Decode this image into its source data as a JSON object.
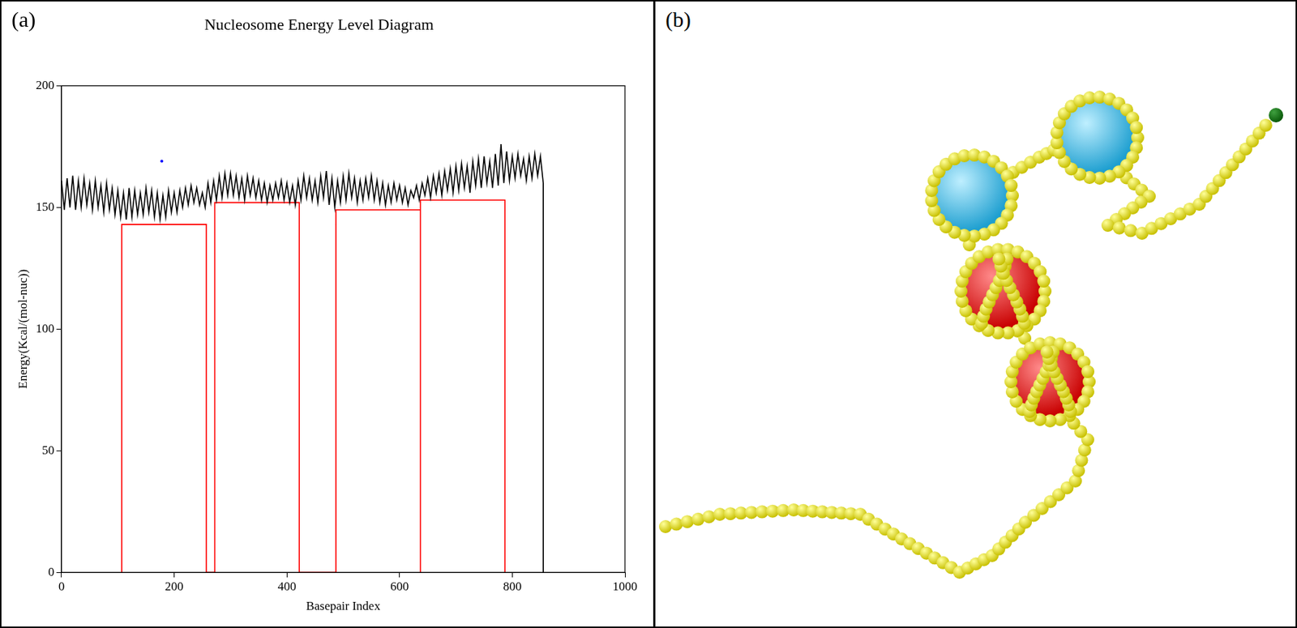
{
  "panel_labels": [
    "(a)",
    "(b)"
  ],
  "chart_data": {
    "type": "line",
    "title": "Nucleosome Energy Level Diagram",
    "x_label": "Basepair Index",
    "y_label": "Energy(Kcal/(mol-nuc))",
    "xlim": [
      0,
      1000
    ],
    "xticks": [
      0,
      200,
      400,
      600,
      800,
      1000
    ],
    "ylim": [
      0,
      200
    ],
    "yticks": [
      0,
      50,
      100,
      150,
      200
    ],
    "grid": false,
    "series": [
      {
        "type": "line",
        "color": "#000000",
        "x": [
          0,
          5,
          10,
          15,
          20,
          25,
          30,
          35,
          40,
          45,
          50,
          55,
          60,
          65,
          70,
          75,
          80,
          85,
          90,
          95,
          100,
          105,
          110,
          115,
          120,
          125,
          130,
          135,
          140,
          145,
          150,
          155,
          160,
          165,
          170,
          175,
          180,
          185,
          190,
          195,
          200,
          205,
          210,
          215,
          220,
          225,
          230,
          235,
          240,
          245,
          250,
          255,
          260,
          265,
          270,
          275,
          280,
          285,
          290,
          295,
          300,
          305,
          310,
          315,
          320,
          325,
          330,
          335,
          340,
          345,
          350,
          355,
          360,
          365,
          370,
          375,
          380,
          385,
          390,
          395,
          400,
          405,
          410,
          415,
          420,
          425,
          430,
          435,
          440,
          445,
          450,
          455,
          460,
          465,
          470,
          475,
          480,
          485,
          490,
          495,
          500,
          505,
          510,
          515,
          520,
          525,
          530,
          535,
          540,
          545,
          550,
          555,
          560,
          565,
          570,
          575,
          580,
          585,
          590,
          595,
          600,
          605,
          610,
          615,
          620,
          625,
          630,
          635,
          640,
          645,
          650,
          655,
          660,
          665,
          670,
          675,
          680,
          685,
          690,
          695,
          700,
          705,
          710,
          715,
          720,
          725,
          730,
          735,
          740,
          745,
          750,
          755,
          760,
          765,
          770,
          775,
          780,
          785,
          790,
          795,
          800,
          805,
          810,
          815,
          820,
          825,
          830,
          835,
          840,
          845,
          850,
          855,
          855
        ],
        "values": [
          161,
          149,
          162,
          150,
          163,
          149,
          161,
          150,
          162,
          151,
          160,
          149,
          161,
          150,
          159,
          148,
          160,
          149,
          158,
          147,
          157,
          146,
          156,
          145,
          158,
          146,
          157,
          147,
          156,
          147,
          158,
          148,
          157,
          146,
          156,
          145,
          155,
          146,
          157,
          148,
          156,
          148,
          157,
          150,
          158,
          151,
          159,
          152,
          158,
          151,
          156,
          150,
          160,
          152,
          161,
          153,
          163,
          154,
          164,
          155,
          164,
          155,
          163,
          154,
          162,
          153,
          163,
          155,
          162,
          154,
          161,
          153,
          160,
          152,
          159,
          153,
          160,
          154,
          161,
          153,
          160,
          152,
          159,
          151,
          161,
          153,
          163,
          154,
          162,
          153,
          161,
          152,
          163,
          154,
          165,
          151,
          162,
          150,
          161,
          152,
          163,
          153,
          164,
          154,
          162,
          152,
          161,
          153,
          162,
          154,
          163,
          153,
          161,
          152,
          160,
          151,
          159,
          152,
          160,
          153,
          159,
          152,
          158,
          151,
          157,
          154,
          159,
          153,
          160,
          155,
          162,
          154,
          163,
          156,
          164,
          155,
          165,
          157,
          166,
          156,
          167,
          157,
          168,
          158,
          167,
          156,
          169,
          159,
          170,
          158,
          171,
          160,
          169,
          158,
          172,
          159,
          176,
          160,
          173,
          161,
          171,
          162,
          172,
          163,
          170,
          161,
          171,
          162,
          172,
          163,
          171,
          160,
          0
        ]
      },
      {
        "type": "line",
        "color": "#ff0000",
        "x": [
          107,
          107,
          257,
          257,
          272,
          272,
          422,
          422,
          487,
          487,
          637,
          637,
          637,
          787,
          787
        ],
        "values": [
          0,
          143,
          143,
          0,
          0,
          152,
          152,
          0,
          0,
          149,
          149,
          0,
          153,
          153,
          0
        ]
      },
      {
        "type": "scatter",
        "color": "#0000ff",
        "marker": "circle",
        "x": [
          178
        ],
        "values": [
          169
        ]
      }
    ]
  }
}
